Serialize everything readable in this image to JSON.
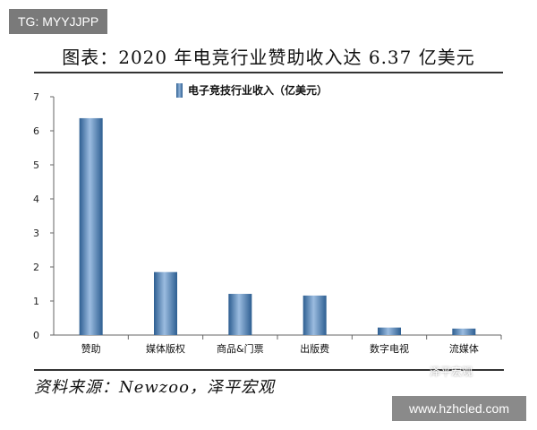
{
  "tag": "TG: MYYJJPP",
  "title": "图表：2020 年电竞行业赞助收入达 6.37 亿美元",
  "source": "资料来源：Newzoo，泽平宏观",
  "watermark": "泽平宏观",
  "url": "www.hzhcled.com",
  "chart_data": {
    "type": "bar",
    "categories": [
      "赞助",
      "媒体版权",
      "商品&门票",
      "出版费",
      "数字电视",
      "流媒体"
    ],
    "series": [
      {
        "name": "电子竞技行业收入（亿美元）",
        "values": [
          6.37,
          1.85,
          1.21,
          1.16,
          0.22,
          0.19
        ]
      }
    ],
    "ylim": [
      0,
      7
    ],
    "yticks": [
      0,
      1,
      2,
      3,
      4,
      5,
      6,
      7
    ],
    "legend": "top-center",
    "grid": false,
    "bar_color": "#4f7fb3"
  }
}
